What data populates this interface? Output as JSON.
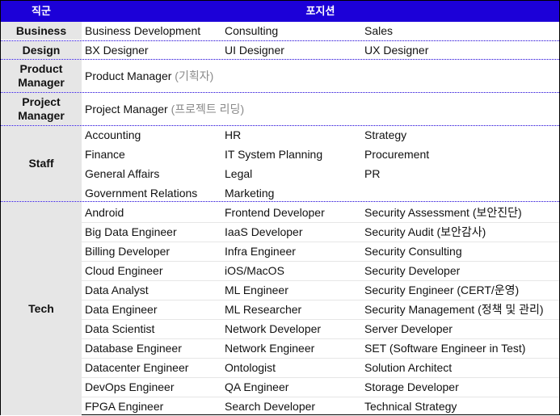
{
  "header": {
    "category_label": "직군",
    "position_label": "포지션"
  },
  "sections": [
    {
      "name": "Business",
      "rows": [
        [
          "Business Development",
          "Consulting",
          "Sales"
        ]
      ]
    },
    {
      "name": "Design",
      "rows": [
        [
          "BX Designer",
          "UI Designer",
          "UX Designer"
        ]
      ]
    },
    {
      "name": "Product\nManager",
      "single": {
        "main": "Product Manager",
        "note": "(기획자)"
      }
    },
    {
      "name": "Project\nManager",
      "single": {
        "main": "Project Manager",
        "note": "(프로젝트 리딩)"
      }
    },
    {
      "name": "Staff",
      "rows": [
        [
          "Accounting",
          "HR",
          "Strategy"
        ],
        [
          "Finance",
          "IT System Planning",
          "Procurement"
        ],
        [
          "General Affairs",
          "Legal",
          "PR"
        ],
        [
          "Government Relations",
          "Marketing",
          ""
        ]
      ]
    },
    {
      "name": "Tech",
      "rows": [
        [
          "Android",
          "Frontend Developer",
          "Security Assessment (보안진단)"
        ],
        [
          "Big Data Engineer",
          "IaaS Developer",
          "Security Audit (보안감사)"
        ],
        [
          "Billing Developer",
          "Infra Engineer",
          "Security Consulting"
        ],
        [
          "Cloud Engineer",
          "iOS/MacOS",
          "Security Developer"
        ],
        [
          "Data Analyst",
          "ML Engineer",
          "Security Engineer (CERT/운영)"
        ],
        [
          "Data Engineer",
          "ML Researcher",
          "Security Management (정책 및 관리)"
        ],
        [
          "Data Scientist",
          "Network Developer",
          "Server Developer"
        ],
        [
          "Database Engineer",
          "Network Engineer",
          "SET (Software Engineer in Test)"
        ],
        [
          "Datacenter Engineer",
          "Ontologist",
          "Solution Architect"
        ],
        [
          "DevOps Engineer",
          "QA Engineer",
          "Storage Developer"
        ],
        [
          "FPGA Engineer",
          "Search Developer",
          "Technical Strategy"
        ]
      ]
    }
  ]
}
